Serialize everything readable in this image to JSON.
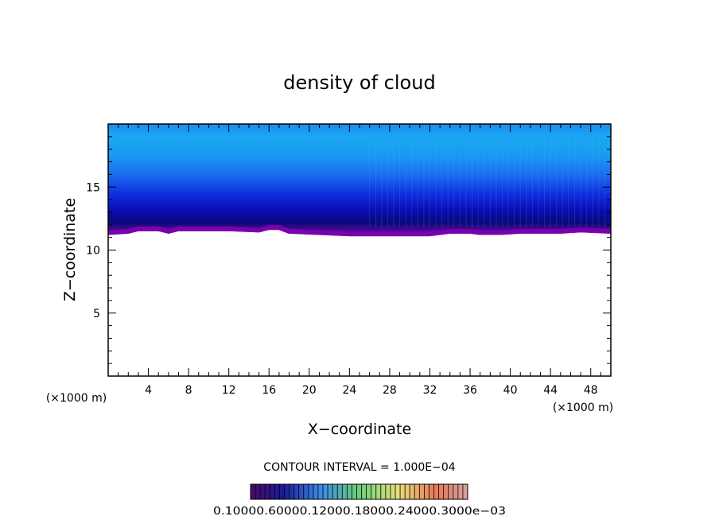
{
  "chart_data": {
    "type": "heatmap",
    "title": "density of cloud",
    "xlabel": "X−coordinate",
    "ylabel": "Z−coordinate",
    "x_unit_left": "(×1000 m)",
    "x_unit_right": "(×1000 m)",
    "xlim": [
      0,
      50
    ],
    "ylim": [
      0,
      20
    ],
    "x_ticks": [
      4,
      8,
      12,
      16,
      20,
      24,
      28,
      32,
      36,
      40,
      44,
      48
    ],
    "x_tick_labels": [
      "4",
      "8",
      "12",
      "16",
      "20",
      "24",
      "28",
      "32",
      "36",
      "40",
      "44",
      "48"
    ],
    "y_ticks": [
      5,
      10,
      15
    ],
    "y_tick_labels": [
      "5",
      "10",
      "15"
    ],
    "cloud_top_km": 20,
    "cloud_base_profile": {
      "x": [
        0,
        2,
        3,
        5,
        6,
        7,
        12,
        15,
        16,
        17,
        18,
        24,
        28,
        32,
        34,
        36,
        37,
        39,
        41,
        43,
        45,
        47,
        50
      ],
      "z": [
        11.2,
        11.3,
        11.5,
        11.5,
        11.3,
        11.5,
        11.5,
        11.4,
        11.6,
        11.6,
        11.3,
        11.1,
        11.1,
        11.1,
        11.3,
        11.3,
        11.2,
        11.2,
        11.3,
        11.3,
        11.3,
        11.4,
        11.3
      ]
    },
    "contour_interval_text": "CONTOUR INTERVAL = 1.000E−04",
    "colorbar": {
      "labels": [
        "0.1000e-05",
        "0.6000e-04",
        "0.1200e-03",
        "0.1800e-03",
        "0.2400e-03",
        "0.3000e-03"
      ],
      "label_text": "0.10000.60000.12000.18000.24000.3000e−03"
    },
    "colors": {
      "purple": "#7a00b0",
      "dark_blue": "#0a0a7a",
      "blue": "#1020e8",
      "mid_blue": "#1a6ef0",
      "light_blue": "#1aa8f0",
      "cyan_blue": "#1ab4f4"
    }
  }
}
